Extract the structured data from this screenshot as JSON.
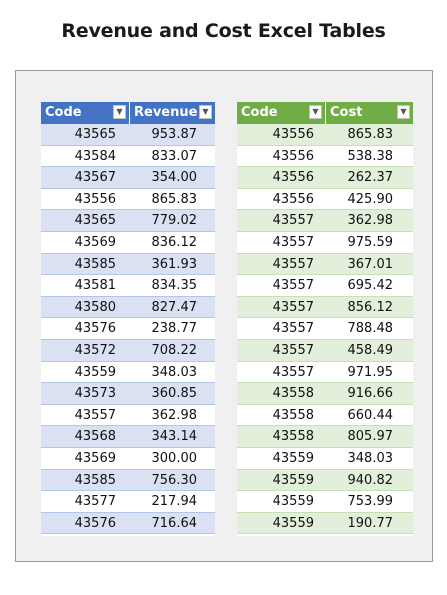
{
  "title": "Revenue and Cost Excel Tables",
  "revenue_table": {
    "headers": [
      "Code",
      "Revenue"
    ],
    "rows": [
      [
        "43565",
        "953.87"
      ],
      [
        "43584",
        "833.07"
      ],
      [
        "43567",
        "354.00"
      ],
      [
        "43556",
        "865.83"
      ],
      [
        "43565",
        "779.02"
      ],
      [
        "43569",
        "836.12"
      ],
      [
        "43585",
        "361.93"
      ],
      [
        "43581",
        "834.35"
      ],
      [
        "43580",
        "827.47"
      ],
      [
        "43576",
        "238.77"
      ],
      [
        "43572",
        "708.22"
      ],
      [
        "43559",
        "348.03"
      ],
      [
        "43573",
        "360.85"
      ],
      [
        "43557",
        "362.98"
      ],
      [
        "43568",
        "343.14"
      ],
      [
        "43569",
        "300.00"
      ],
      [
        "43585",
        "756.30"
      ],
      [
        "43577",
        "217.94"
      ],
      [
        "43576",
        "716.64"
      ]
    ]
  },
  "cost_table": {
    "headers": [
      "Code",
      "Cost"
    ],
    "rows": [
      [
        "43556",
        "865.83"
      ],
      [
        "43556",
        "538.38"
      ],
      [
        "43556",
        "262.37"
      ],
      [
        "43556",
        "425.90"
      ],
      [
        "43557",
        "362.98"
      ],
      [
        "43557",
        "975.59"
      ],
      [
        "43557",
        "367.01"
      ],
      [
        "43557",
        "695.42"
      ],
      [
        "43557",
        "856.12"
      ],
      [
        "43557",
        "788.48"
      ],
      [
        "43557",
        "458.49"
      ],
      [
        "43557",
        "971.95"
      ],
      [
        "43558",
        "916.66"
      ],
      [
        "43558",
        "660.44"
      ],
      [
        "43558",
        "805.97"
      ],
      [
        "43559",
        "348.03"
      ],
      [
        "43559",
        "940.82"
      ],
      [
        "43559",
        "753.99"
      ],
      [
        "43559",
        "190.77"
      ]
    ]
  },
  "colors": {
    "revenue_header": "#4472c4",
    "revenue_band": "#d9e1f2",
    "cost_header": "#70ad47",
    "cost_band": "#e2efda"
  },
  "icons": {
    "filter_dropdown": "chevron-down-icon"
  }
}
